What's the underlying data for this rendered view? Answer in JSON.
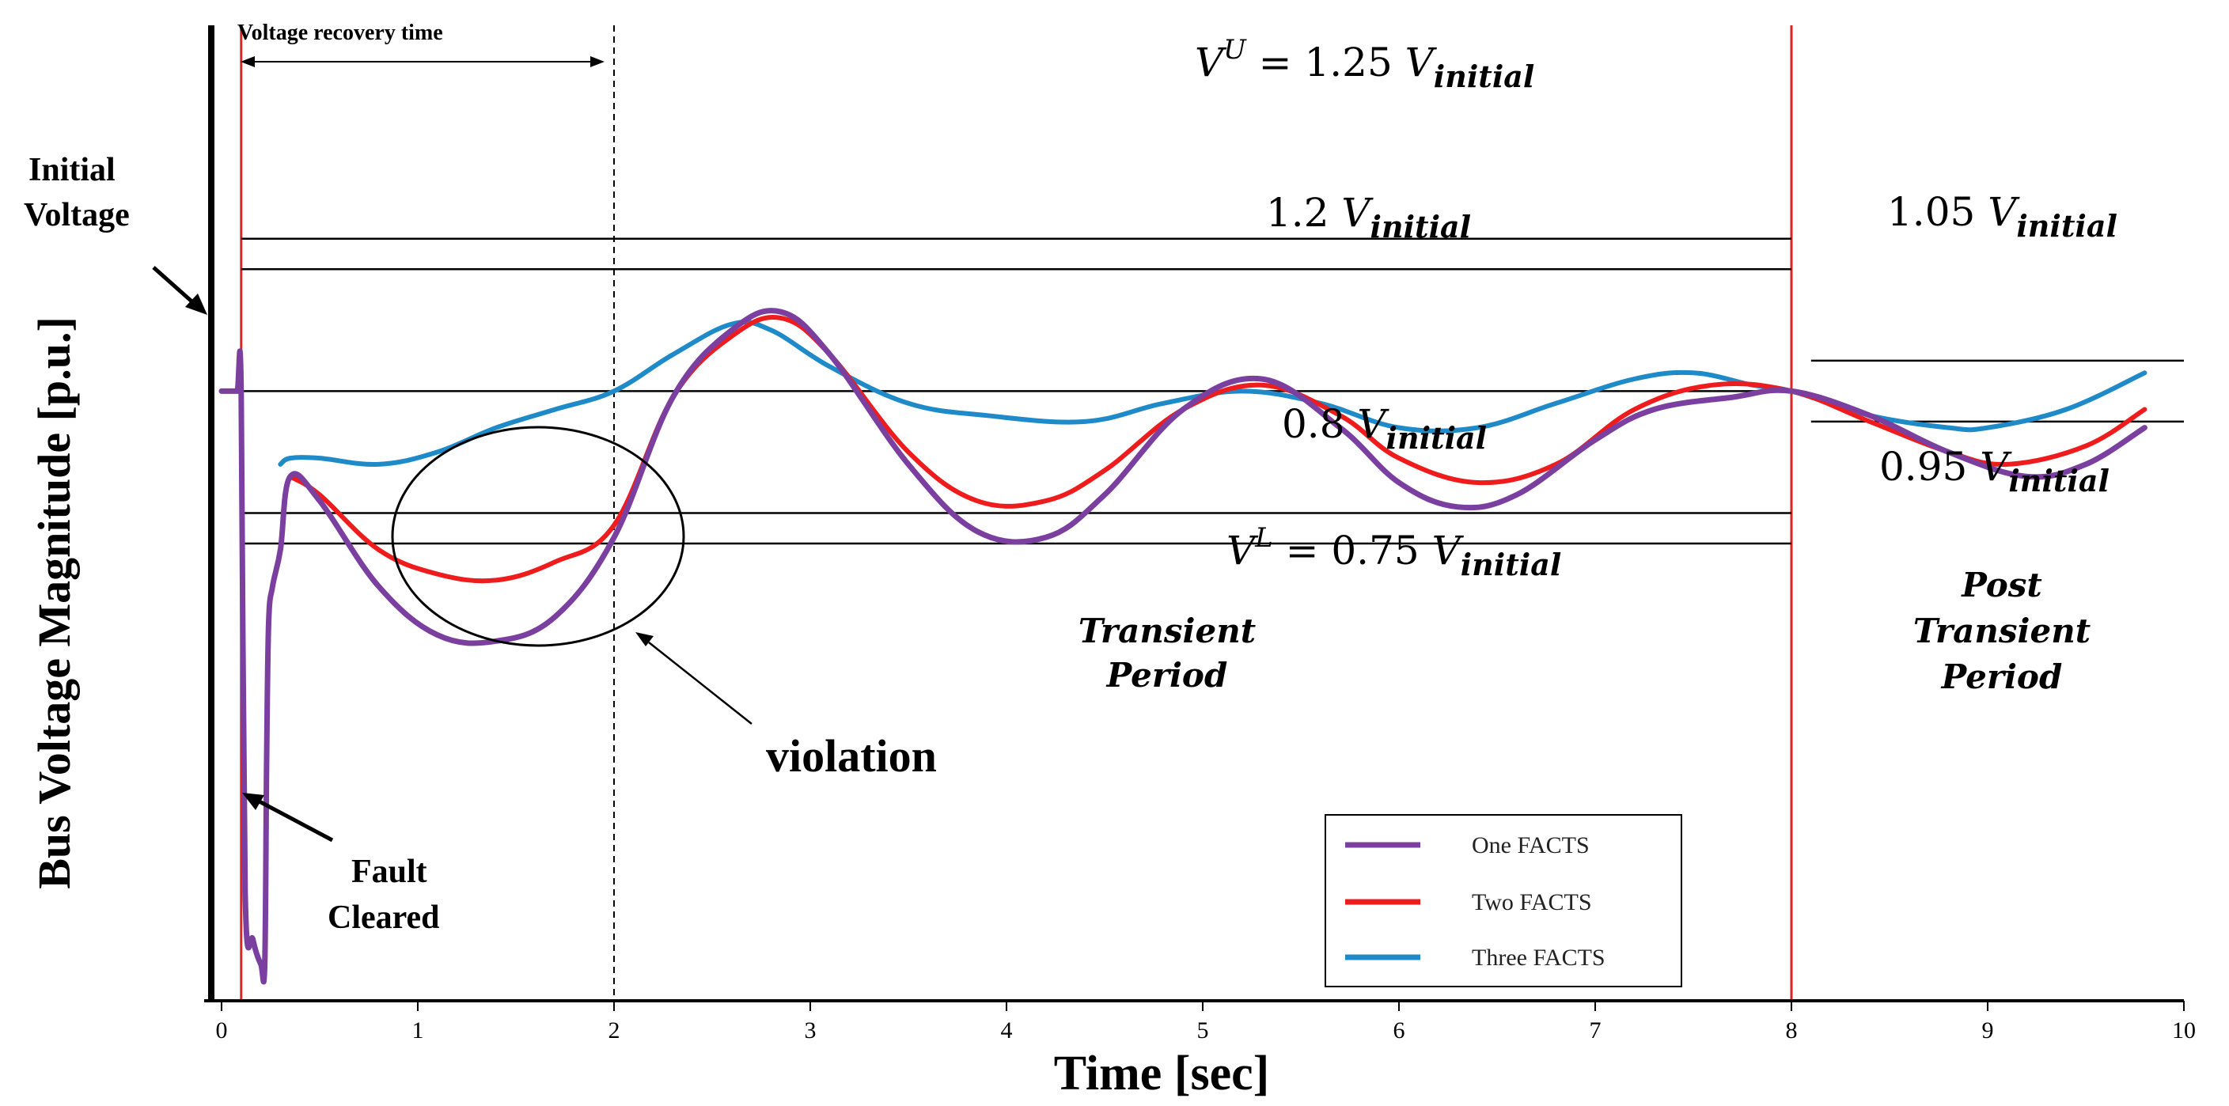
{
  "chart_data": {
    "type": "line",
    "title": "",
    "xlabel": "Time [sec]",
    "ylabel": "Bus Voltage Magnitude [p.u.]",
    "xlim": [
      0,
      10
    ],
    "ylim": [
      0.0,
      1.6
    ],
    "x_ticks": [
      "0",
      "1",
      "2",
      "3",
      "4",
      "5",
      "6",
      "7",
      "8",
      "9",
      "10"
    ],
    "grid": false,
    "legend_position": "bottom-right",
    "colors": {
      "one_facts": "#7b3fa0",
      "two_facts": "#ee1c1c",
      "three_facts": "#1e8ac8",
      "vline": "#e02424"
    },
    "reference_levels": [
      {
        "name": "vu",
        "y": 1.25,
        "xmin": 0.1,
        "xmax": 8.0,
        "label_main": "V",
        "label_sup": "U",
        "label_rest": " = 1.25 ",
        "label_var": "V",
        "label_sub": "initial"
      },
      {
        "name": "v12",
        "y": 1.2,
        "xmin": 0.1,
        "xmax": 8.0,
        "label_main": "1.2 ",
        "label_var": "V",
        "label_sub": "initial"
      },
      {
        "name": "v_initial",
        "y": 1.0,
        "xmin": 0.0,
        "xmax": 8.0
      },
      {
        "name": "v08",
        "y": 0.8,
        "xmin": 0.1,
        "xmax": 8.0,
        "label_main": "0.8 ",
        "label_var": "V",
        "label_sub": "initial"
      },
      {
        "name": "vl",
        "y": 0.75,
        "xmin": 0.1,
        "xmax": 8.0,
        "label_main": "V",
        "label_sup": "L",
        "label_rest": " = 0.75 ",
        "label_var": "V",
        "label_sub": "initial"
      },
      {
        "name": "v105",
        "y": 1.05,
        "xmin": 8.1,
        "xmax": 10.0,
        "label_main": "1.05 ",
        "label_var": "V",
        "label_sub": "initial"
      },
      {
        "name": "v095",
        "y": 0.95,
        "xmin": 8.1,
        "xmax": 10.0,
        "label_main": "0.95 ",
        "label_var": "V",
        "label_sub": "initial"
      }
    ],
    "vertical_lines": [
      {
        "name": "fault-line",
        "x": 0.1,
        "style": "solid",
        "color": "red"
      },
      {
        "name": "recovery-line",
        "x": 2.0,
        "style": "dashed",
        "color": "black"
      },
      {
        "name": "period-line",
        "x": 8.0,
        "style": "solid",
        "color": "red"
      }
    ],
    "series": [
      {
        "name": "One FACTS",
        "x": [
          0.0,
          0.05,
          0.08,
          0.1,
          0.12,
          0.16,
          0.2,
          0.22,
          0.23,
          0.24,
          0.26,
          0.3,
          0.35,
          0.5,
          0.8,
          1.1,
          1.4,
          1.7,
          2.0,
          2.3,
          2.6,
          2.85,
          3.1,
          3.5,
          3.85,
          4.2,
          4.5,
          4.9,
          5.3,
          5.7,
          6.0,
          6.3,
          6.6,
          7.0,
          7.3,
          7.7,
          8.0,
          8.4,
          8.8,
          9.2,
          9.5,
          9.8
        ],
        "y": [
          1.0,
          1.0,
          1.0,
          1.0,
          0.18,
          0.1,
          0.06,
          0.06,
          0.4,
          0.62,
          0.68,
          0.74,
          0.86,
          0.82,
          0.68,
          0.6,
          0.59,
          0.63,
          0.76,
          0.99,
          1.1,
          1.13,
          1.06,
          0.88,
          0.77,
          0.76,
          0.83,
          0.97,
          1.02,
          0.94,
          0.85,
          0.81,
          0.83,
          0.92,
          0.97,
          0.99,
          1.0,
          0.96,
          0.9,
          0.86,
          0.88,
          0.94
        ]
      },
      {
        "name": "Two FACTS",
        "x": [
          0.35,
          0.5,
          0.8,
          1.1,
          1.4,
          1.7,
          2.0,
          2.3,
          2.6,
          2.85,
          3.1,
          3.5,
          3.85,
          4.2,
          4.5,
          4.9,
          5.3,
          5.7,
          6.0,
          6.4,
          6.8,
          7.2,
          7.6,
          8.0,
          8.4,
          8.8,
          9.1,
          9.5,
          9.8
        ],
        "y": [
          0.86,
          0.83,
          0.74,
          0.7,
          0.69,
          0.72,
          0.78,
          0.99,
          1.09,
          1.12,
          1.06,
          0.9,
          0.82,
          0.82,
          0.87,
          0.97,
          1.01,
          0.96,
          0.89,
          0.85,
          0.88,
          0.97,
          1.01,
          1.0,
          0.95,
          0.9,
          0.88,
          0.91,
          0.97
        ]
      },
      {
        "name": "Three FACTS",
        "x": [
          0.3,
          0.35,
          0.5,
          0.8,
          1.1,
          1.4,
          1.7,
          2.0,
          2.3,
          2.6,
          2.8,
          3.1,
          3.5,
          3.9,
          4.4,
          4.8,
          5.2,
          5.6,
          6.0,
          6.4,
          6.8,
          7.2,
          7.5,
          7.8,
          8.0,
          8.4,
          8.8,
          9.0,
          9.4,
          9.8
        ],
        "y": [
          0.88,
          0.89,
          0.89,
          0.88,
          0.9,
          0.94,
          0.97,
          1.0,
          1.06,
          1.11,
          1.1,
          1.04,
          0.98,
          0.96,
          0.95,
          0.98,
          1.0,
          0.98,
          0.94,
          0.94,
          0.98,
          1.02,
          1.03,
          1.01,
          1.0,
          0.96,
          0.94,
          0.94,
          0.97,
          1.03
        ]
      }
    ],
    "annotations": {
      "voltage_recovery_time": "Voltage recovery time",
      "initial_voltage_line1": "Initial",
      "initial_voltage_line2": "Voltage",
      "fault_cleared_line1": "Fault",
      "fault_cleared_line2": "Cleared",
      "violation": "violation",
      "transient_line1": "Transient",
      "transient_line2": "Period",
      "post_line1": "Post",
      "post_line2": "Transient",
      "post_line3": "Period"
    }
  }
}
